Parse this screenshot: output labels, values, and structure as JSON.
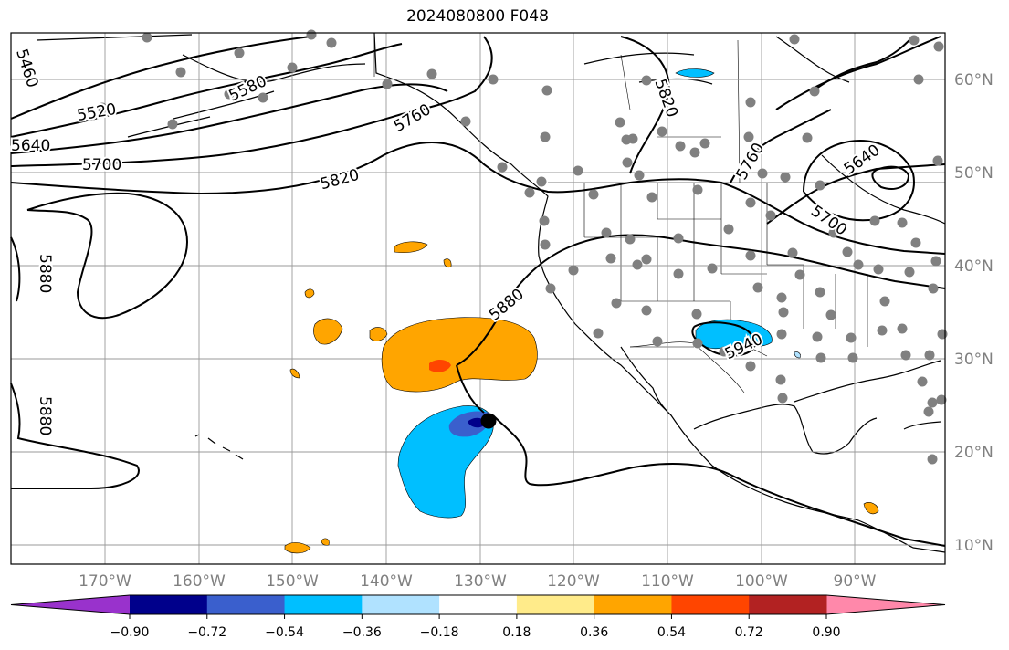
{
  "title": "2024080800 F048",
  "map": {
    "lon_labels": [
      "170°W",
      "160°W",
      "150°W",
      "140°W",
      "130°W",
      "120°W",
      "110°W",
      "100°W",
      "90°W"
    ],
    "lat_labels": [
      "60°N",
      "50°N",
      "40°N",
      "30°N",
      "20°N",
      "10°N"
    ],
    "contour_labels": [
      "5460",
      "5520",
      "5580",
      "5640",
      "5700",
      "5760",
      "5820",
      "5880",
      "5940"
    ]
  },
  "colorbar": {
    "tick_labels": [
      "−0.90",
      "−0.72",
      "−0.54",
      "−0.36",
      "−0.18",
      "0.18",
      "0.36",
      "0.54",
      "0.72",
      "0.90"
    ],
    "colors": [
      "#9932cc",
      "#00008b",
      "#3a5fcd",
      "#00bfff",
      "#b0e2ff",
      "#ffffff",
      "#ffeb8a",
      "#ffa500",
      "#ff4500",
      "#b22222",
      "#ff88aa"
    ]
  }
}
